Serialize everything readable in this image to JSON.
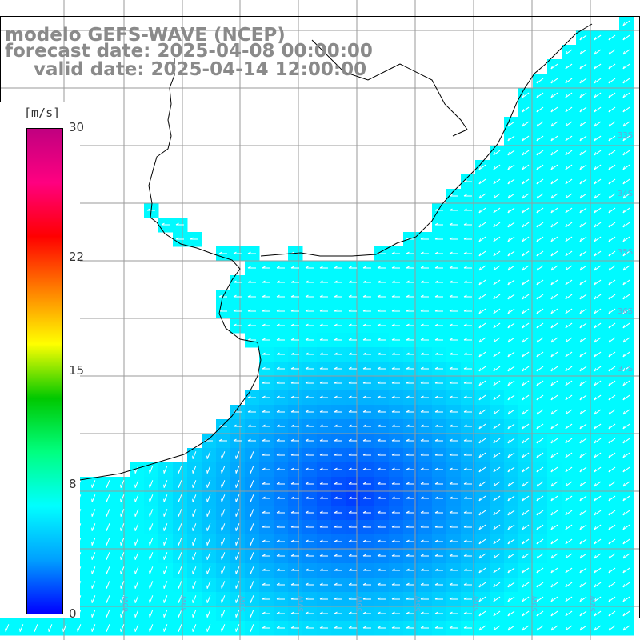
{
  "title": {
    "line1": "modelo GEFS-WAVE (NCEP)",
    "line2": "forecast date: 2025-04-08 00:00:00",
    "line3": "valid date: 2025-04-14 12:00:00"
  },
  "colorbar": {
    "units": "[m/s]",
    "min": 0,
    "max": 30,
    "ticks": [
      "30",
      "22",
      "15",
      "8",
      "0"
    ],
    "tick_values": [
      30,
      22,
      15,
      8,
      0
    ],
    "colors": [
      "#0000ff",
      "#00a0ff",
      "#00ffff",
      "#00ff80",
      "#00c800",
      "#ffff00",
      "#ff8000",
      "#ff0000",
      "#ff0080",
      "#c00080"
    ]
  },
  "map": {
    "ocean_field": "wind speed",
    "lat_labels": [
      "33S",
      "34S",
      "35S",
      "36S",
      "37S"
    ],
    "lon_labels": [
      "62W",
      "61W",
      "60W",
      "59W",
      "58W",
      "57W",
      "56W",
      "55W",
      "54W",
      "53W",
      "52W",
      "51W"
    ],
    "wind_direction": "from east/northeast",
    "colors": {
      "land": "#ffffff",
      "coast": "#000000",
      "grid": "#9a9a9a",
      "arrows": "#ffffff"
    }
  }
}
